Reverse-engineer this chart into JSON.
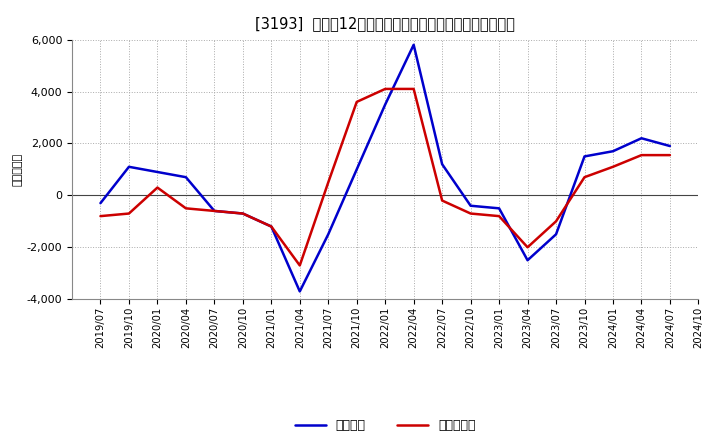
{
  "title": "[3193]  利益だ12か月移動合計の対前年同期増減額の推移",
  "ylabel": "（百万円）",
  "x_labels": [
    "2019/07",
    "2019/10",
    "2020/01",
    "2020/04",
    "2020/07",
    "2020/10",
    "2021/01",
    "2021/04",
    "2021/07",
    "2021/10",
    "2022/01",
    "2022/04",
    "2022/07",
    "2022/10",
    "2023/01",
    "2023/04",
    "2023/07",
    "2023/10",
    "2024/01",
    "2024/04",
    "2024/07",
    "2024/10"
  ],
  "operating_profit": [
    -300,
    1100,
    900,
    700,
    -600,
    -700,
    -1200,
    -3700,
    -1500,
    1000,
    3500,
    5800,
    1200,
    -400,
    -500,
    -2500,
    -1500,
    1500,
    1700,
    2200,
    1900,
    null
  ],
  "net_profit": [
    -800,
    -700,
    300,
    -500,
    -600,
    -700,
    -1200,
    -2700,
    500,
    3600,
    4100,
    4100,
    -200,
    -700,
    -800,
    -2000,
    -1000,
    700,
    1100,
    1550,
    1550,
    null
  ],
  "ylim": [
    -4000,
    6000
  ],
  "yticks": [
    -4000,
    -2000,
    0,
    2000,
    4000,
    6000
  ],
  "operating_color": "#0000cc",
  "net_color": "#cc0000",
  "bg_color": "#ffffff",
  "grid_color": "#aaaaaa",
  "legend_labels": [
    "経常利益",
    "当期純利益"
  ]
}
